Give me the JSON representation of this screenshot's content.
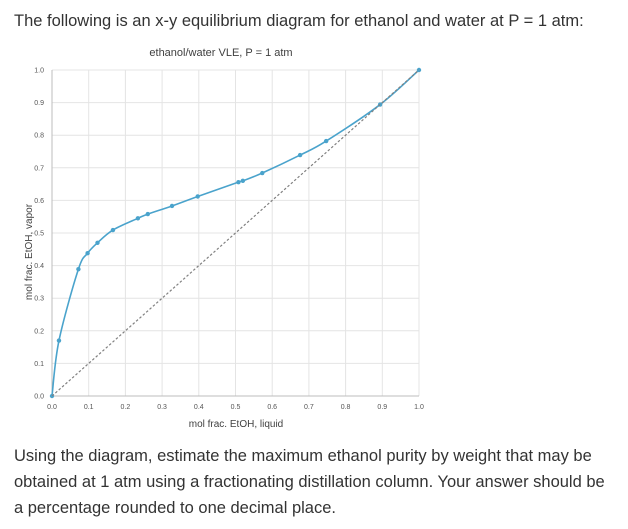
{
  "intro_text": "The following is an x-y equilibrium diagram for ethanol and water at P = 1 atm:",
  "question_text": "Using the diagram, estimate the maximum ethanol purity by weight that may be obtained at 1 atm using a fractionating distillation column. Your answer should be a percentage rounded to one decimal place.",
  "chart_data": {
    "type": "scatter",
    "title": "ethanol/water VLE, P = 1 atm",
    "xlabel": "mol frac. EtOH, liquid",
    "ylabel": "mol frac. EtOH, vapor",
    "xlim": [
      0,
      1
    ],
    "ylim": [
      0,
      1
    ],
    "x_ticks": [
      "0.0",
      "0.1",
      "0.2",
      "0.3",
      "0.4",
      "0.5",
      "0.6",
      "0.7",
      "0.8",
      "0.9",
      "1.0"
    ],
    "y_ticks": [
      "0.0",
      "0.1",
      "0.2",
      "0.3",
      "0.4",
      "0.5",
      "0.6",
      "0.7",
      "0.8",
      "0.9",
      "1.0"
    ],
    "grid": true,
    "series": [
      {
        "kind": "markers+smooth-line",
        "color": "#4aa3cc",
        "x": [
          0.0,
          0.019,
          0.072,
          0.097,
          0.124,
          0.166,
          0.234,
          0.261,
          0.327,
          0.397,
          0.508,
          0.52,
          0.573,
          0.676,
          0.747,
          0.894,
          1.0
        ],
        "y": [
          0.0,
          0.17,
          0.389,
          0.438,
          0.47,
          0.509,
          0.545,
          0.558,
          0.583,
          0.612,
          0.656,
          0.66,
          0.684,
          0.739,
          0.782,
          0.894,
          1.0
        ]
      },
      {
        "kind": "dashed-line",
        "color": "#808080",
        "x": [
          0,
          1
        ],
        "y": [
          0,
          1
        ]
      }
    ]
  }
}
